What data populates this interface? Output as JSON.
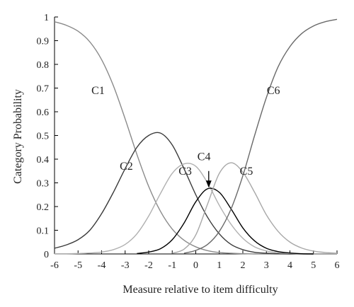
{
  "chart_data": {
    "type": "line",
    "xlabel": "Measure relative to item difficulty",
    "ylabel": "Category Probability",
    "xlim": [
      -6,
      6
    ],
    "ylim": [
      0,
      1
    ],
    "xticks": [
      "-6",
      "-5",
      "-4",
      "-3",
      "-2",
      "-1",
      "0",
      "1",
      "2",
      "3",
      "4",
      "5",
      "6"
    ],
    "yticks": [
      "0",
      "0.1",
      "0.2",
      "0.3",
      "0.4",
      "0.5",
      "0.6",
      "0.7",
      "0.8",
      "0.9",
      "1"
    ],
    "grid": false,
    "x": [
      -6,
      -5.5,
      -5,
      -4.5,
      -4,
      -3.5,
      -3,
      -2.5,
      -2,
      -1.5,
      -1,
      -0.5,
      0,
      0.5,
      1,
      1.5,
      2,
      2.5,
      3,
      3.5,
      4,
      4.5,
      5,
      5.5,
      6
    ],
    "series": [
      {
        "name": "C1",
        "color": "#8a8a8a",
        "values": [
          0.98,
          0.965,
          0.94,
          0.895,
          0.82,
          0.71,
          0.57,
          0.42,
          0.285,
          0.18,
          0.105,
          0.058,
          0.03,
          0.014,
          0.006,
          0.003,
          0.001,
          0,
          0,
          0,
          0,
          0,
          0,
          0,
          0
        ]
      },
      {
        "name": "C2",
        "color": "#3a3a3a",
        "values": [
          0.024,
          0.038,
          0.06,
          0.1,
          0.17,
          0.26,
          0.36,
          0.45,
          0.5,
          0.51,
          0.46,
          0.36,
          0.25,
          0.155,
          0.085,
          0.04,
          0.018,
          0.007,
          0.003,
          0.001,
          0,
          0,
          0,
          0,
          0
        ]
      },
      {
        "name": "C3",
        "color": "#b0b0b0",
        "values": [
          0.001,
          0.001,
          0.002,
          0.004,
          0.008,
          0.018,
          0.04,
          0.085,
          0.16,
          0.255,
          0.34,
          0.38,
          0.37,
          0.3,
          0.205,
          0.125,
          0.066,
          0.03,
          0.013,
          0.005,
          0.002,
          0,
          0,
          0,
          0
        ]
      },
      {
        "name": "C4",
        "color": "#000000",
        "values": [
          null,
          null,
          null,
          null,
          null,
          null,
          null,
          0.002,
          0.008,
          0.022,
          0.06,
          0.13,
          0.22,
          0.275,
          0.26,
          0.19,
          0.11,
          0.055,
          0.024,
          0.01,
          0.004,
          0.001,
          0,
          null,
          null
        ]
      },
      {
        "name": "C5",
        "color": "#a8a8a8",
        "values": [
          null,
          null,
          null,
          null,
          null,
          null,
          null,
          null,
          null,
          null,
          0.003,
          0.02,
          0.08,
          0.21,
          0.34,
          0.385,
          0.345,
          0.26,
          0.165,
          0.095,
          0.05,
          0.025,
          0.012,
          0.006,
          0.003
        ]
      },
      {
        "name": "C6",
        "color": "#6a6a6a",
        "values": [
          null,
          null,
          null,
          null,
          null,
          null,
          null,
          null,
          null,
          null,
          null,
          0.003,
          0.015,
          0.04,
          0.095,
          0.19,
          0.33,
          0.5,
          0.66,
          0.79,
          0.875,
          0.93,
          0.962,
          0.98,
          0.99
        ]
      }
    ],
    "annotations": [
      {
        "text": "C1",
        "x": -4.15,
        "y": 0.675
      },
      {
        "text": "C2",
        "x": -2.95,
        "y": 0.355
      },
      {
        "text": "C3",
        "x": -0.45,
        "y": 0.335
      },
      {
        "text": "C4",
        "x": 0.35,
        "y": 0.395
      },
      {
        "text": "C5",
        "x": 2.15,
        "y": 0.335
      },
      {
        "text": "C6",
        "x": 3.3,
        "y": 0.675
      }
    ],
    "arrow": {
      "from": [
        0.55,
        0.35
      ],
      "to": [
        0.55,
        0.28
      ]
    }
  }
}
